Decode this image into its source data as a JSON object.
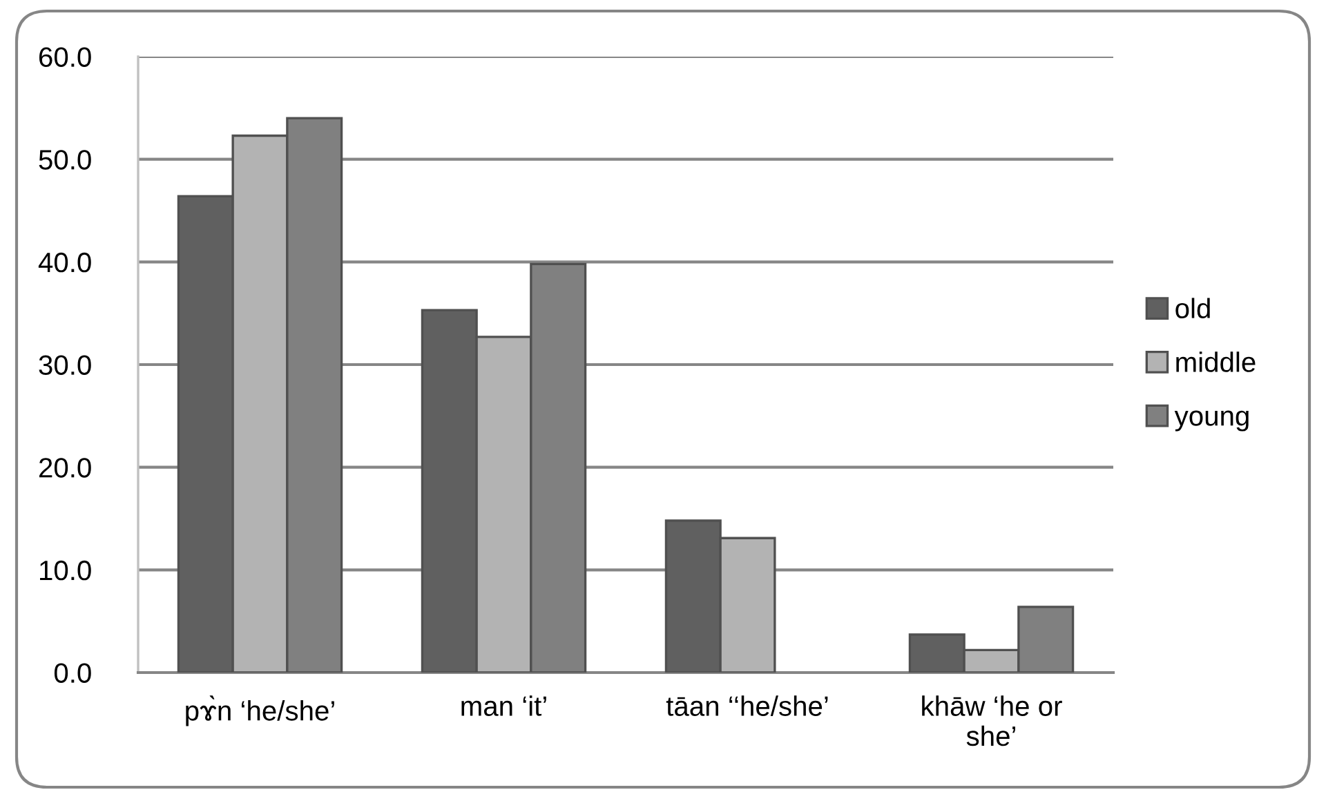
{
  "chart_data": {
    "type": "bar",
    "categories": [
      "pɤ̀n ‘he/she’",
      "man ‘it’",
      "tāan ‘‘he/she’",
      "khāw ‘he or\nshe’"
    ],
    "series": [
      {
        "name": "old",
        "color": "#606060",
        "values": [
          46.4,
          35.3,
          14.8,
          3.7
        ]
      },
      {
        "name": "middle",
        "color": "#b3b3b3",
        "values": [
          52.3,
          32.7,
          13.1,
          2.2
        ]
      },
      {
        "name": "young",
        "color": "#808080",
        "values": [
          54.0,
          39.8,
          null,
          6.4
        ]
      }
    ],
    "ylim": [
      0,
      60
    ],
    "yticks": [
      {
        "value": 0,
        "label": "0.0"
      },
      {
        "value": 10,
        "label": "10.0"
      },
      {
        "value": 20,
        "label": "20.0"
      },
      {
        "value": 30,
        "label": "30.0"
      },
      {
        "value": 40,
        "label": "40.0"
      },
      {
        "value": 50,
        "label": "50.0"
      },
      {
        "value": 60,
        "label": "60.0"
      }
    ],
    "grid": "y",
    "legend": "right"
  }
}
